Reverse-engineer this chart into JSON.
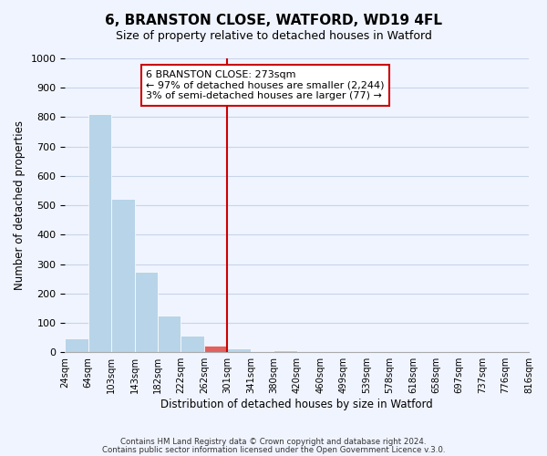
{
  "title": "6, BRANSTON CLOSE, WATFORD, WD19 4FL",
  "subtitle": "Size of property relative to detached houses in Watford",
  "xlabel": "Distribution of detached houses by size in Watford",
  "ylabel": "Number of detached properties",
  "bin_labels": [
    "24sqm",
    "64sqm",
    "103sqm",
    "143sqm",
    "182sqm",
    "222sqm",
    "262sqm",
    "301sqm",
    "341sqm",
    "380sqm",
    "420sqm",
    "460sqm",
    "499sqm",
    "539sqm",
    "578sqm",
    "618sqm",
    "658sqm",
    "697sqm",
    "737sqm",
    "776sqm",
    "816sqm"
  ],
  "bar_heights": [
    46,
    810,
    522,
    275,
    125,
    58,
    22,
    12,
    0,
    8,
    0,
    0,
    0,
    0,
    0,
    0,
    0,
    0,
    0,
    0
  ],
  "bar_color_normal": "#b8d4e8",
  "bar_color_highlight": "#e06060",
  "bar_color_edge": "#ffffff",
  "highlight_bar_index": 6,
  "vline_color": "#cc0000",
  "ylim": [
    0,
    1000
  ],
  "yticks": [
    0,
    100,
    200,
    300,
    400,
    500,
    600,
    700,
    800,
    900,
    1000
  ],
  "annotation_title": "6 BRANSTON CLOSE: 273sqm",
  "annotation_line1": "← 97% of detached houses are smaller (2,244)",
  "annotation_line2": "3% of semi-detached houses are larger (77) →",
  "annotation_box_facecolor": "#ffffff",
  "annotation_box_edgecolor": "#cc0000",
  "vline_x_index": 6,
  "footer1": "Contains HM Land Registry data © Crown copyright and database right 2024.",
  "footer2": "Contains public sector information licensed under the Open Government Licence v.3.0.",
  "background_color": "#f0f4ff",
  "grid_color": "#c8d4e8"
}
